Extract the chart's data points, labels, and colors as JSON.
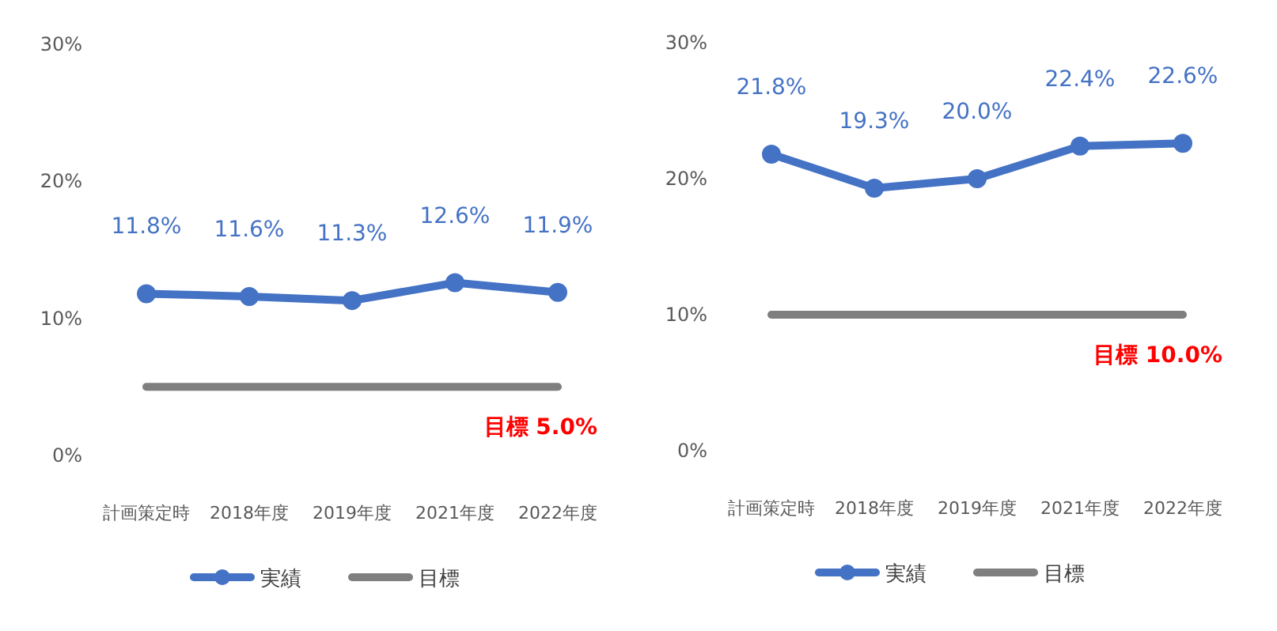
{
  "chart_data": [
    {
      "type": "line",
      "categories": [
        "計画策定時",
        "2018年度",
        "2019年度",
        "2021年度",
        "2022年度"
      ],
      "ylim": [
        0,
        30
      ],
      "yticks": [
        {
          "value": 0,
          "label": "0%"
        },
        {
          "value": 10,
          "label": "10%"
        },
        {
          "value": 20,
          "label": "20%"
        },
        {
          "value": 30,
          "label": "30%"
        }
      ],
      "grid": false,
      "legend": "bottom",
      "series": [
        {
          "name": "実績",
          "color": "#4472c4",
          "marker": "circle",
          "values": [
            11.8,
            11.6,
            11.3,
            12.6,
            11.9
          ],
          "value_labels": [
            "11.8%",
            "11.6%",
            "11.3%",
            "12.6%",
            "11.9%"
          ]
        },
        {
          "name": "目標",
          "color": "#7f7f7f",
          "marker": "none",
          "values": [
            5.0,
            5.0,
            5.0,
            5.0,
            5.0
          ]
        }
      ],
      "annotations": [
        {
          "text": "目標 5.0%",
          "x": "2022年度",
          "y": 5.0
        }
      ]
    },
    {
      "type": "line",
      "categories": [
        "計画策定時",
        "2018年度",
        "2019年度",
        "2021年度",
        "2022年度"
      ],
      "ylim": [
        0,
        30
      ],
      "yticks": [
        {
          "value": 0,
          "label": "0%"
        },
        {
          "value": 10,
          "label": "10%"
        },
        {
          "value": 20,
          "label": "20%"
        },
        {
          "value": 30,
          "label": "30%"
        }
      ],
      "grid": false,
      "legend": "bottom",
      "series": [
        {
          "name": "実績",
          "color": "#4472c4",
          "marker": "circle",
          "values": [
            21.8,
            19.3,
            20.0,
            22.4,
            22.6
          ],
          "value_labels": [
            "21.8%",
            "19.3%",
            "20.0%",
            "22.4%",
            "22.6%"
          ]
        },
        {
          "name": "目標",
          "color": "#7f7f7f",
          "marker": "none",
          "values": [
            10.0,
            10.0,
            10.0,
            10.0,
            10.0
          ]
        }
      ],
      "annotations": [
        {
          "text": "目標 10.0%",
          "x": "2022年度",
          "y": 10.0
        }
      ]
    }
  ]
}
